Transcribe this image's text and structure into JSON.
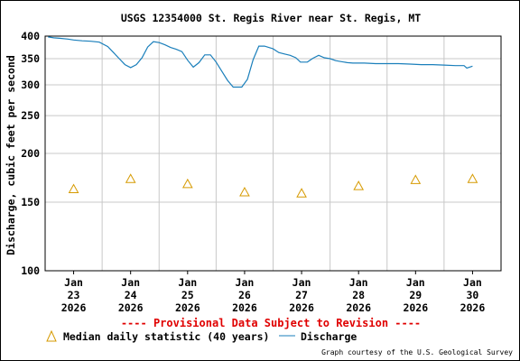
{
  "chart_data": {
    "type": "line",
    "title": "USGS 12354000 St. Regis River near St. Regis, MT",
    "ylabel": "Discharge, cubic feet per second",
    "xlabel": "",
    "y_scale": "log",
    "ylim": [
      100,
      400
    ],
    "y_ticks": [
      100,
      150,
      200,
      250,
      300,
      350,
      400
    ],
    "x_tick_labels": [
      {
        "month": "Jan",
        "day": "23",
        "year": "2026"
      },
      {
        "month": "Jan",
        "day": "24",
        "year": "2026"
      },
      {
        "month": "Jan",
        "day": "25",
        "year": "2026"
      },
      {
        "month": "Jan",
        "day": "26",
        "year": "2026"
      },
      {
        "month": "Jan",
        "day": "27",
        "year": "2026"
      },
      {
        "month": "Jan",
        "day": "28",
        "year": "2026"
      },
      {
        "month": "Jan",
        "day": "29",
        "year": "2026"
      },
      {
        "month": "Jan",
        "day": "30",
        "year": "2026"
      }
    ],
    "x_range_days": [
      22.5,
      30.5
    ],
    "grid": true,
    "series": [
      {
        "name": "Discharge",
        "color": "#1a7fbb",
        "points": [
          [
            22.55,
            398
          ],
          [
            22.65,
            396
          ],
          [
            22.75,
            395
          ],
          [
            22.9,
            393
          ],
          [
            23.0,
            391
          ],
          [
            23.15,
            389
          ],
          [
            23.3,
            388
          ],
          [
            23.45,
            386
          ],
          [
            23.6,
            376
          ],
          [
            23.7,
            363
          ],
          [
            23.8,
            350
          ],
          [
            23.9,
            338
          ],
          [
            24.0,
            332
          ],
          [
            24.1,
            338
          ],
          [
            24.2,
            352
          ],
          [
            24.3,
            375
          ],
          [
            24.4,
            387
          ],
          [
            24.5,
            385
          ],
          [
            24.6,
            380
          ],
          [
            24.7,
            374
          ],
          [
            24.8,
            370
          ],
          [
            24.9,
            365
          ],
          [
            25.0,
            347
          ],
          [
            25.1,
            333
          ],
          [
            25.2,
            342
          ],
          [
            25.3,
            358
          ],
          [
            25.4,
            358
          ],
          [
            25.5,
            343
          ],
          [
            25.6,
            325
          ],
          [
            25.7,
            308
          ],
          [
            25.8,
            296
          ],
          [
            25.95,
            296
          ],
          [
            26.05,
            310
          ],
          [
            26.15,
            348
          ],
          [
            26.25,
            377
          ],
          [
            26.35,
            377
          ],
          [
            26.5,
            371
          ],
          [
            26.6,
            363
          ],
          [
            26.7,
            360
          ],
          [
            26.8,
            357
          ],
          [
            26.9,
            352
          ],
          [
            26.98,
            343
          ],
          [
            27.1,
            343
          ],
          [
            27.2,
            351
          ],
          [
            27.3,
            357
          ],
          [
            27.4,
            352
          ],
          [
            27.5,
            350
          ],
          [
            27.6,
            346
          ],
          [
            27.7,
            344
          ],
          [
            27.8,
            342
          ],
          [
            27.9,
            341
          ],
          [
            28.1,
            341
          ],
          [
            28.3,
            340
          ],
          [
            28.5,
            340
          ],
          [
            28.7,
            340
          ],
          [
            28.9,
            339
          ],
          [
            29.1,
            338
          ],
          [
            29.3,
            338
          ],
          [
            29.5,
            337
          ],
          [
            29.7,
            336
          ],
          [
            29.85,
            336
          ],
          [
            29.9,
            331
          ],
          [
            30.0,
            335
          ]
        ]
      },
      {
        "name": "Median daily statistic (40 years)",
        "color": "#d69a00",
        "marker": "triangle",
        "points": [
          [
            23.0,
            162
          ],
          [
            24.0,
            172
          ],
          [
            25.0,
            167
          ],
          [
            26.0,
            159
          ],
          [
            27.0,
            158
          ],
          [
            28.0,
            165
          ],
          [
            29.0,
            171
          ],
          [
            30.0,
            172
          ]
        ]
      }
    ]
  },
  "notes": {
    "provisional": "---- Provisional Data Subject to Revision ----",
    "credit": "Graph courtesy of the U.S. Geological Survey"
  },
  "legend": {
    "median_label": "Median daily statistic (40 years)",
    "discharge_label": "Discharge"
  },
  "colors": {
    "provisional": "#e00000",
    "discharge": "#1a7fbb",
    "median": "#d69a00",
    "grid": "#c8c8c8",
    "border": "#000000"
  }
}
